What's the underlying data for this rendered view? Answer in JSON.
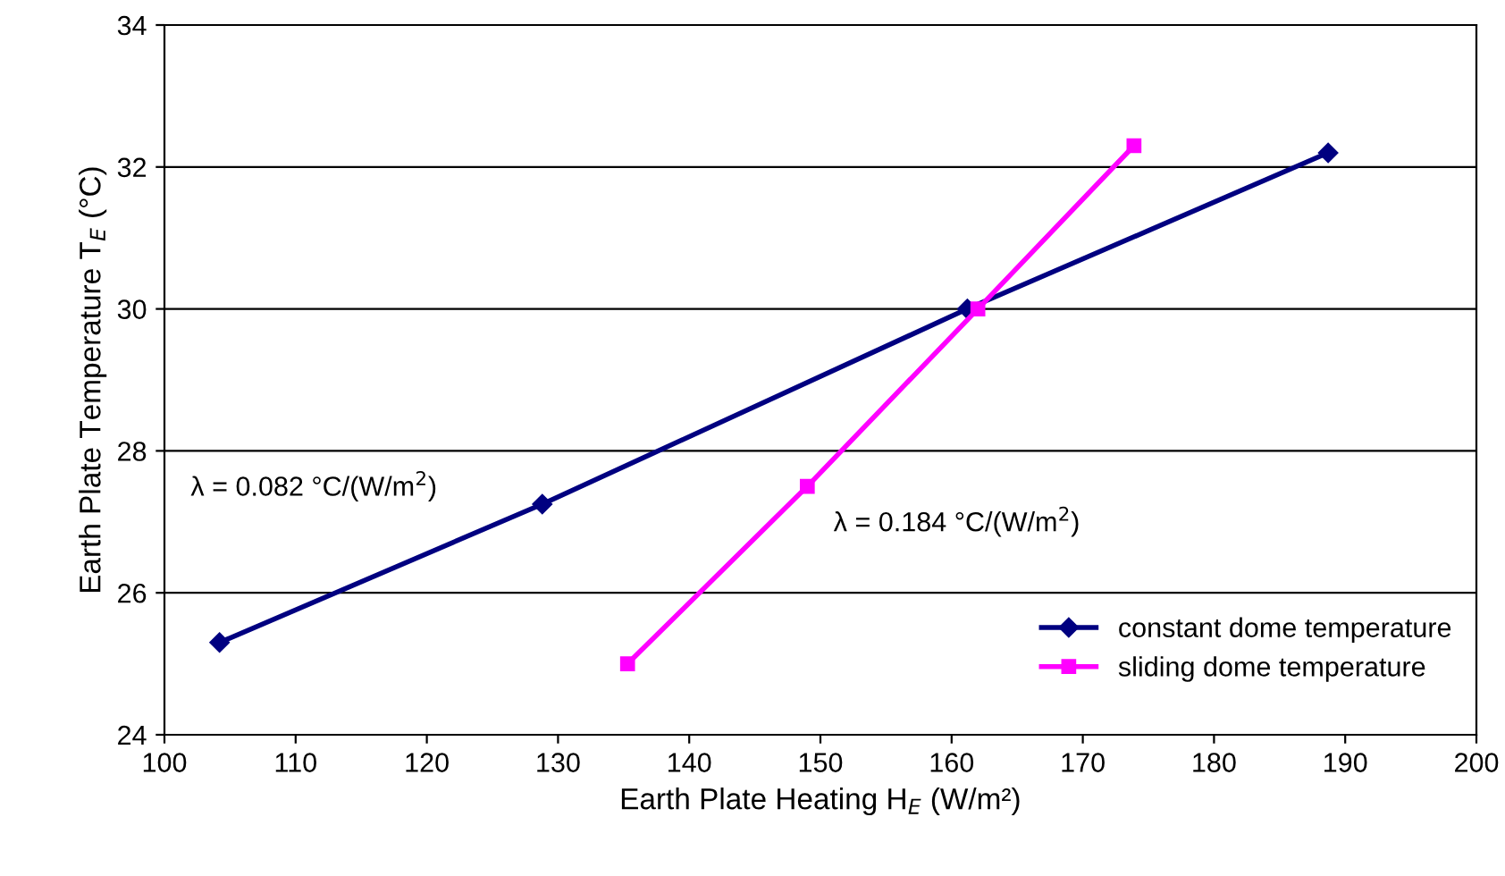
{
  "chart_data": {
    "type": "line",
    "xlabel": "Earth Plate Heating H$_{E}$ (W/m²)",
    "ylabel": "Earth Plate Temperature T$_{E}$ (°C)",
    "xlim": [
      100,
      200
    ],
    "xticks": [
      100,
      110,
      120,
      130,
      140,
      150,
      160,
      170,
      180,
      190,
      200
    ],
    "ylim": [
      24,
      34
    ],
    "yticks": [
      24,
      26,
      28,
      30,
      32,
      34
    ],
    "grid": "y",
    "legend": "bottom right",
    "series": [
      {
        "name": "constant dome temperature",
        "color": "#000080",
        "marker": "diamond",
        "x": [
          104.2,
          128.8,
          161.2,
          188.7
        ],
        "values": [
          25.3,
          27.25,
          30.0,
          32.2
        ]
      },
      {
        "name": "sliding dome temperature",
        "color": "#ff00ff",
        "marker": "square",
        "x": [
          135.3,
          149.0,
          162.0,
          173.9
        ],
        "values": [
          25.0,
          27.5,
          30.0,
          32.3
        ]
      }
    ],
    "annotations": [
      "λ = 0.082 °C/(W/m$^{2}$)",
      "λ = 0.184 °C/(W/m$^{2}$)"
    ]
  }
}
